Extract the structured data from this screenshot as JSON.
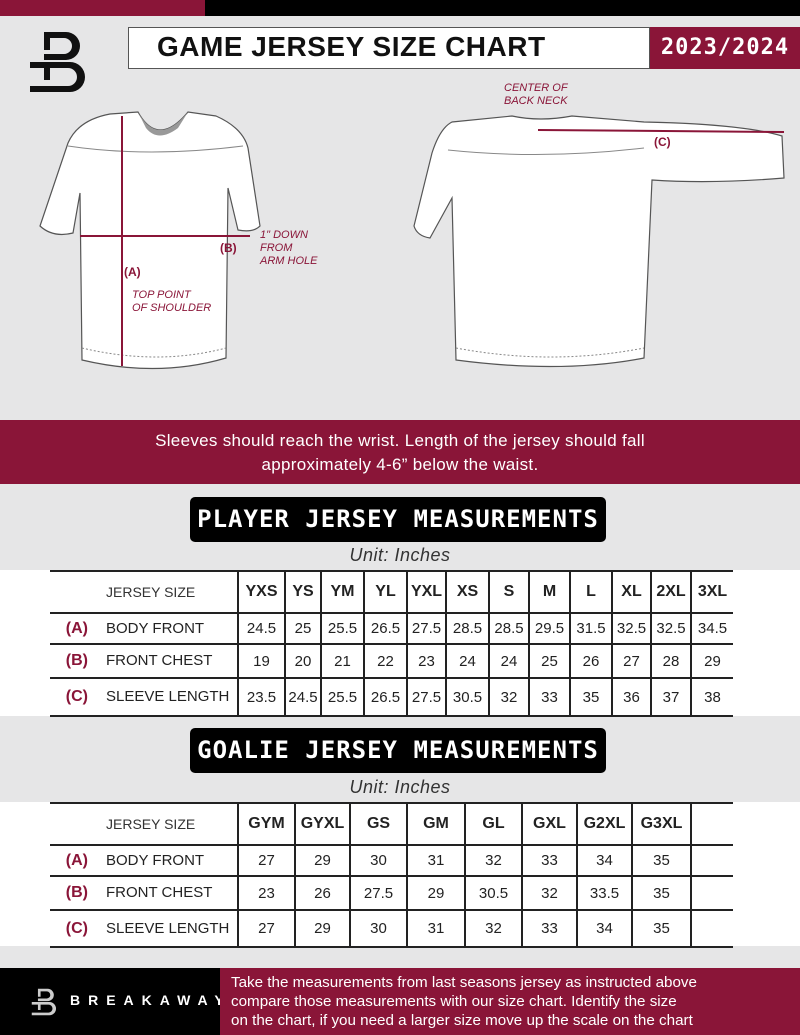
{
  "header": {
    "title": "GAME JERSEY SIZE CHART",
    "season": "2023/2024",
    "brand_colors": {
      "crimson": "#8a1538",
      "black": "#000000"
    }
  },
  "diagram": {
    "label_a": "(A)",
    "label_b": "(B)",
    "label_c": "(C)",
    "note_a": [
      "TOP POINT",
      "OF SHOULDER"
    ],
    "note_b": [
      "1\" DOWN",
      "FROM",
      "ARM HOLE"
    ],
    "note_c": [
      "CENTER OF",
      "BACK NECK"
    ]
  },
  "instructions": [
    "Sleeves should reach the wrist. Length of the jersey should fall",
    "approximately 4-6” below the waist."
  ],
  "player": {
    "heading": "PLAYER JERSEY MEASUREMENTS",
    "unit": "Unit: Inches",
    "size_label": "JERSEY SIZE",
    "sizes": [
      "YXS",
      "YS",
      "YM",
      "YL",
      "YXL",
      "XS",
      "S",
      "M",
      "L",
      "XL",
      "2XL",
      "3XL"
    ],
    "rows": [
      {
        "letter": "(A)",
        "label": "BODY FRONT",
        "values": [
          "24.5",
          "25",
          "25.5",
          "26.5",
          "27.5",
          "28.5",
          "28.5",
          "29.5",
          "31.5",
          "32.5",
          "32.5",
          "34.5"
        ]
      },
      {
        "letter": "(B)",
        "label": "FRONT CHEST",
        "values": [
          "19",
          "20",
          "21",
          "22",
          "23",
          "24",
          "24",
          "25",
          "26",
          "27",
          "28",
          "29"
        ]
      },
      {
        "letter": "(C)",
        "label": "SLEEVE LENGTH",
        "values": [
          "23.5",
          "24.5",
          "25.5",
          "26.5",
          "27.5",
          "30.5",
          "32",
          "33",
          "35",
          "36",
          "37",
          "38"
        ]
      }
    ]
  },
  "goalie": {
    "heading": "GOALIE JERSEY MEASUREMENTS",
    "unit": "Unit: Inches",
    "size_label": "JERSEY SIZE",
    "sizes": [
      "GYM",
      "GYXL",
      "GS",
      "GM",
      "GL",
      "GXL",
      "G2XL",
      "G3XL",
      ""
    ],
    "rows": [
      {
        "letter": "(A)",
        "label": "BODY FRONT",
        "values": [
          "27",
          "29",
          "30",
          "31",
          "32",
          "33",
          "34",
          "35",
          ""
        ]
      },
      {
        "letter": "(B)",
        "label": "FRONT CHEST",
        "values": [
          "23",
          "26",
          "27.5",
          "29",
          "30.5",
          "32",
          "33.5",
          "35",
          ""
        ]
      },
      {
        "letter": "(C)",
        "label": "SLEEVE LENGTH",
        "values": [
          "27",
          "29",
          "30",
          "31",
          "32",
          "33",
          "34",
          "35",
          ""
        ]
      }
    ]
  },
  "footer": {
    "brand": "BREAKAWAY",
    "text": [
      "Take the measurements from last seasons jersey as instructed above",
      "compare those measurements  with our size chart. Identify the size",
      "on the chart, if you need a larger size move up the scale on the chart"
    ]
  }
}
